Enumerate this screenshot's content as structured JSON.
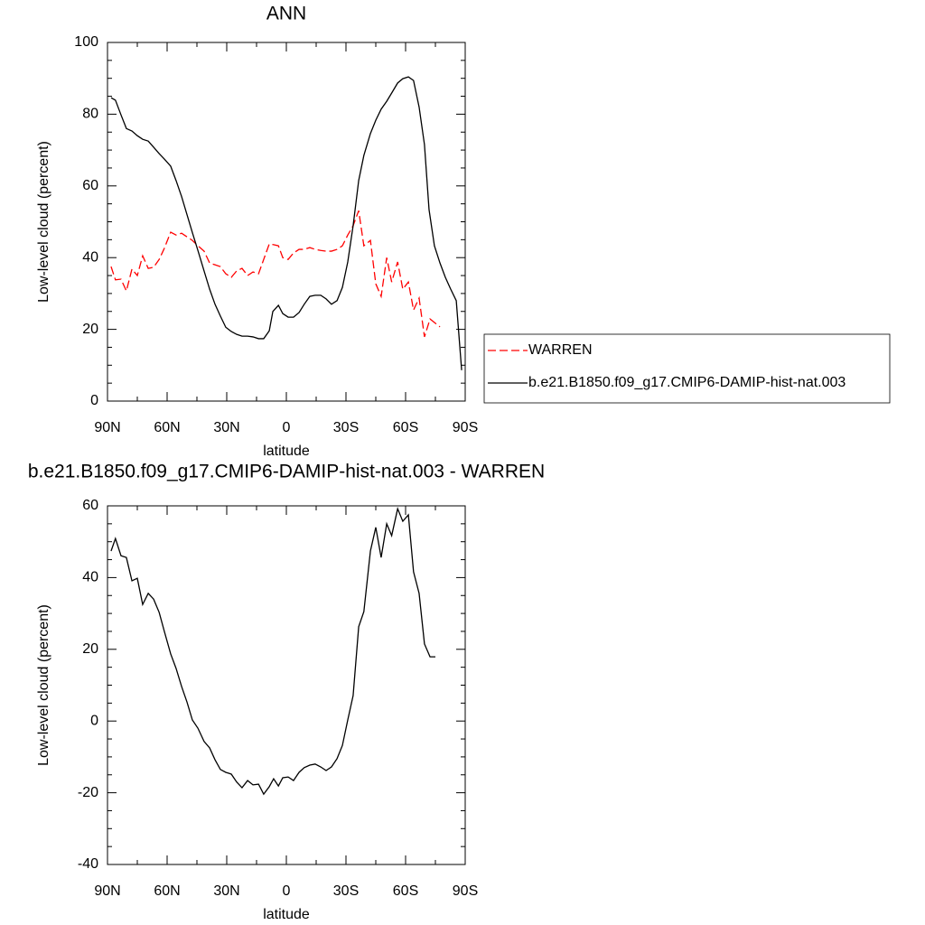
{
  "chart_data": [
    {
      "type": "line",
      "title": "ANN",
      "xlabel": "latitude",
      "ylabel": "Low-level cloud (percent)",
      "xlim": [
        90,
        -90
      ],
      "ylim": [
        0,
        100
      ],
      "xticks": [
        {
          "value": 90,
          "label": "90N"
        },
        {
          "value": 60,
          "label": "60N"
        },
        {
          "value": 30,
          "label": "30N"
        },
        0,
        {
          "value": -30,
          "label": "30S"
        },
        {
          "value": -60,
          "label": "60S"
        },
        {
          "value": -90,
          "label": "90S"
        }
      ],
      "xminorticks": [
        75,
        45,
        15,
        -15,
        -45,
        -75
      ],
      "yticks": [
        0,
        20,
        40,
        60,
        80,
        100
      ],
      "yminorticks": [
        5,
        10,
        15,
        25,
        30,
        35,
        45,
        50,
        55,
        65,
        70,
        75,
        85,
        90,
        95
      ],
      "legend": "right",
      "series": [
        {
          "name": "WARREN",
          "color": "#ff0000",
          "dash": true,
          "x": [
            88.2,
            86,
            83.2,
            80.5,
            77.7,
            75,
            72.3,
            69.5,
            66.8,
            64,
            61.4,
            58.2,
            55.5,
            52.7,
            50,
            47.3,
            44.5,
            41.4,
            38.6,
            35.9,
            33.2,
            30.5,
            27.7,
            25,
            22.3,
            19.5,
            16.8,
            14,
            11.4,
            8.6,
            6.4,
            4,
            1.8,
            -0.9,
            -3.6,
            -6.4,
            -9,
            -11.8,
            -14.5,
            -17.3,
            -20,
            -22.7,
            -25.5,
            -28.2,
            -30.9,
            -33.6,
            -36.4,
            -39,
            -42.3,
            -45,
            -47.7,
            -50.5,
            -53,
            -56,
            -58.6,
            -61.4,
            -64,
            -66.8,
            -69.5,
            -72.3,
            -75,
            -77.3
          ],
          "values": [
            37.5,
            33.8,
            34,
            30.7,
            36.8,
            35,
            40.5,
            37,
            37.3,
            39.5,
            42.6,
            47.1,
            46.3,
            46.8,
            45.8,
            44.8,
            43.3,
            41.8,
            38.5,
            38,
            37.5,
            35.5,
            34.5,
            36.3,
            37,
            35,
            36,
            35.5,
            39.5,
            43.8,
            43.6,
            43.3,
            40,
            39.5,
            41.3,
            42.3,
            42.3,
            42.8,
            42.3,
            42,
            41.8,
            41.8,
            42.3,
            43.3,
            46.3,
            48.9,
            53.1,
            43.3,
            44.8,
            32.7,
            29.2,
            40,
            33.2,
            38.8,
            31.2,
            33.2,
            25.4,
            28.7,
            17.9,
            22.9,
            21.7,
            20.7
          ]
        },
        {
          "name": "b.e21.B1850.f09_g17.CMIP6-DAMIP-hist-nat.003",
          "color": "#000000",
          "dash": false,
          "x": [
            88.2,
            86,
            83.2,
            80.5,
            77.7,
            75,
            72.3,
            69.5,
            66.8,
            64,
            61.4,
            58.2,
            55.5,
            52.7,
            50,
            47.3,
            44.5,
            41.4,
            38.6,
            35.9,
            33.2,
            30.5,
            27.7,
            25,
            22.3,
            19.5,
            16.8,
            14,
            11.4,
            8.6,
            6.8,
            4,
            1.8,
            -0.9,
            -3.6,
            -6.4,
            -9,
            -11.8,
            -14.5,
            -17.3,
            -20,
            -22.7,
            -25.5,
            -28.2,
            -30.9,
            -33.6,
            -36.4,
            -39,
            -42.3,
            -45,
            -47.7,
            -50.5,
            -53,
            -56,
            -58.6,
            -61.4,
            -64,
            -66.8,
            -69.5,
            -71.8,
            -74.5,
            -77.3,
            -80,
            -82.7,
            -85.5,
            -88.2
          ],
          "values": [
            84.6,
            83.9,
            79.8,
            76,
            75.3,
            74,
            73,
            72.5,
            70.8,
            69,
            67.5,
            65.5,
            61.5,
            57,
            52,
            47,
            42,
            36.3,
            31.2,
            27,
            23.7,
            20.6,
            19.4,
            18.6,
            18.1,
            18.1,
            17.9,
            17.4,
            17.4,
            19.6,
            25,
            26.7,
            24.4,
            23.4,
            23.4,
            24.7,
            27,
            29.2,
            29.5,
            29.5,
            28.5,
            27,
            28,
            31.7,
            38.8,
            48.9,
            61.5,
            68.5,
            74.6,
            78.3,
            81.4,
            83.6,
            85.9,
            88.7,
            89.9,
            90.4,
            89.4,
            82,
            71.5,
            53.4,
            43.3,
            38.5,
            34.5,
            31.2,
            28,
            8.6
          ]
        }
      ]
    },
    {
      "type": "line",
      "title": "b.e21.B1850.f09_g17.CMIP6-DAMIP-hist-nat.003 - WARREN",
      "xlabel": "latitude",
      "ylabel": "Low-level cloud (percent)",
      "xlim": [
        90,
        -90
      ],
      "ylim": [
        -40,
        60
      ],
      "xticks": [
        {
          "value": 90,
          "label": "90N"
        },
        {
          "value": 60,
          "label": "60N"
        },
        {
          "value": 30,
          "label": "30N"
        },
        0,
        {
          "value": -30,
          "label": "30S"
        },
        {
          "value": -60,
          "label": "60S"
        },
        {
          "value": -90,
          "label": "90S"
        }
      ],
      "xminorticks": [
        75,
        45,
        15,
        -15,
        -45,
        -75
      ],
      "yticks": [
        -40,
        -20,
        0,
        20,
        40,
        60
      ],
      "yminorticks": [
        -35,
        -30,
        -25,
        -15,
        -10,
        -5,
        5,
        10,
        15,
        25,
        30,
        35,
        45,
        50,
        55
      ],
      "series": [
        {
          "color": "#000000",
          "dash": false,
          "x": [
            88.2,
            86,
            83.2,
            80.5,
            77.7,
            75,
            72.3,
            69.5,
            66.8,
            64,
            61.4,
            58.2,
            55.5,
            52.7,
            50,
            47.3,
            44.5,
            41.4,
            38.6,
            35.9,
            33.2,
            30.5,
            27.7,
            25,
            22.3,
            19.5,
            16.8,
            14,
            11.4,
            8.6,
            6.4,
            4,
            1.8,
            -0.9,
            -3.6,
            -6.4,
            -9,
            -11.8,
            -14.5,
            -17.3,
            -20,
            -22.7,
            -25.5,
            -28.2,
            -30.9,
            -33.6,
            -36.4,
            -39,
            -42.3,
            -45,
            -47.7,
            -50.5,
            -53,
            -56,
            -58.6,
            -61.4,
            -64,
            -66.8,
            -69.5,
            -72.3,
            -75
          ],
          "values": [
            47.4,
            50.9,
            46.1,
            45.6,
            39.1,
            39.8,
            32.5,
            35.6,
            34,
            30.3,
            25,
            18.7,
            14.7,
            9.6,
            5.3,
            0.3,
            -2,
            -5.7,
            -7.5,
            -10.8,
            -13.5,
            -14.3,
            -14.8,
            -17,
            -18.6,
            -16.6,
            -17.8,
            -17.6,
            -20.4,
            -18.3,
            -16.1,
            -18.1,
            -15.8,
            -15.6,
            -16.6,
            -14.3,
            -13,
            -12.3,
            -12,
            -12.8,
            -13.8,
            -12.8,
            -10.5,
            -6.8,
            0.3,
            7.1,
            26.3,
            30.5,
            47.4,
            54,
            45.6,
            55,
            51.7,
            59.2,
            55.7,
            57.5,
            41.6,
            35.6,
            21.5,
            17.9,
            17.9
          ]
        }
      ]
    }
  ]
}
